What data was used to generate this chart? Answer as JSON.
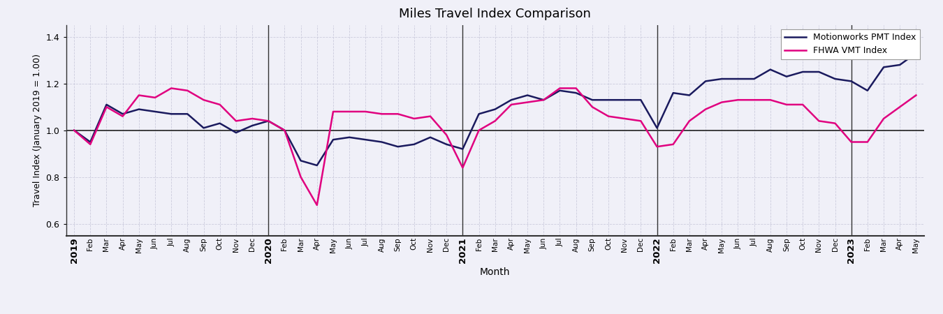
{
  "title": "Miles Travel Index Comparison",
  "xlabel": "Month",
  "ylabel": "Travel Index (January 2019 = 1.00)",
  "ylim": [
    0.55,
    1.45
  ],
  "yticks": [
    0.6,
    0.8,
    1.0,
    1.2,
    1.4
  ],
  "legend_labels": [
    "Motionworks PMT Index",
    "FHWA VMT Index"
  ],
  "pmt_color": "#1a1a5e",
  "vmt_color": "#e0007f",
  "background_color": "#f0f0f8",
  "grid_color": "#ccccdd",
  "vline_color": "#333333",
  "hline_color": "#222222",
  "months": [
    "2019",
    "Feb",
    "Mar",
    "Apr",
    "May",
    "Jun",
    "Jul",
    "Aug",
    "Sep",
    "Oct",
    "Nov",
    "Dec",
    "2020",
    "Feb",
    "Mar",
    "Apr",
    "May",
    "Jun",
    "Jul",
    "Aug",
    "Sep",
    "Oct",
    "Nov",
    "Dec",
    "2021",
    "Feb",
    "Mar",
    "Apr",
    "May",
    "Jun",
    "Jul",
    "Aug",
    "Sep",
    "Oct",
    "Nov",
    "Dec",
    "2022",
    "Feb",
    "Mar",
    "Apr",
    "May",
    "Jun",
    "Jul",
    "Aug",
    "Sep",
    "Oct",
    "Nov",
    "Dec",
    "2023",
    "Feb",
    "Mar",
    "Apr",
    "May"
  ],
  "pmt_values": [
    1.0,
    0.95,
    1.11,
    1.07,
    1.09,
    1.08,
    1.07,
    1.07,
    1.01,
    1.03,
    0.99,
    1.02,
    1.04,
    1.0,
    0.87,
    0.85,
    0.96,
    0.97,
    0.96,
    0.95,
    0.93,
    0.94,
    0.97,
    0.94,
    0.92,
    1.07,
    1.09,
    1.13,
    1.15,
    1.13,
    1.17,
    1.16,
    1.13,
    1.13,
    1.13,
    1.13,
    1.01,
    1.16,
    1.15,
    1.21,
    1.22,
    1.22,
    1.22,
    1.26,
    1.23,
    1.25,
    1.25,
    1.22,
    1.21,
    1.17,
    1.27,
    1.28,
    1.33
  ],
  "vmt_values": [
    1.0,
    0.94,
    1.1,
    1.06,
    1.15,
    1.14,
    1.18,
    1.17,
    1.13,
    1.11,
    1.04,
    1.05,
    1.04,
    1.0,
    0.8,
    0.68,
    1.08,
    1.08,
    1.08,
    1.07,
    1.07,
    1.05,
    1.06,
    0.98,
    0.84,
    1.0,
    1.04,
    1.11,
    1.12,
    1.13,
    1.18,
    1.18,
    1.1,
    1.06,
    1.05,
    1.04,
    0.93,
    0.94,
    1.04,
    1.09,
    1.12,
    1.13,
    1.13,
    1.13,
    1.11,
    1.11,
    1.04,
    1.03,
    0.95,
    0.95,
    1.05,
    1.1,
    1.15
  ],
  "year_positions": [
    0,
    12,
    24,
    36,
    48
  ],
  "year_vline_positions": [
    12,
    24,
    36,
    48
  ]
}
